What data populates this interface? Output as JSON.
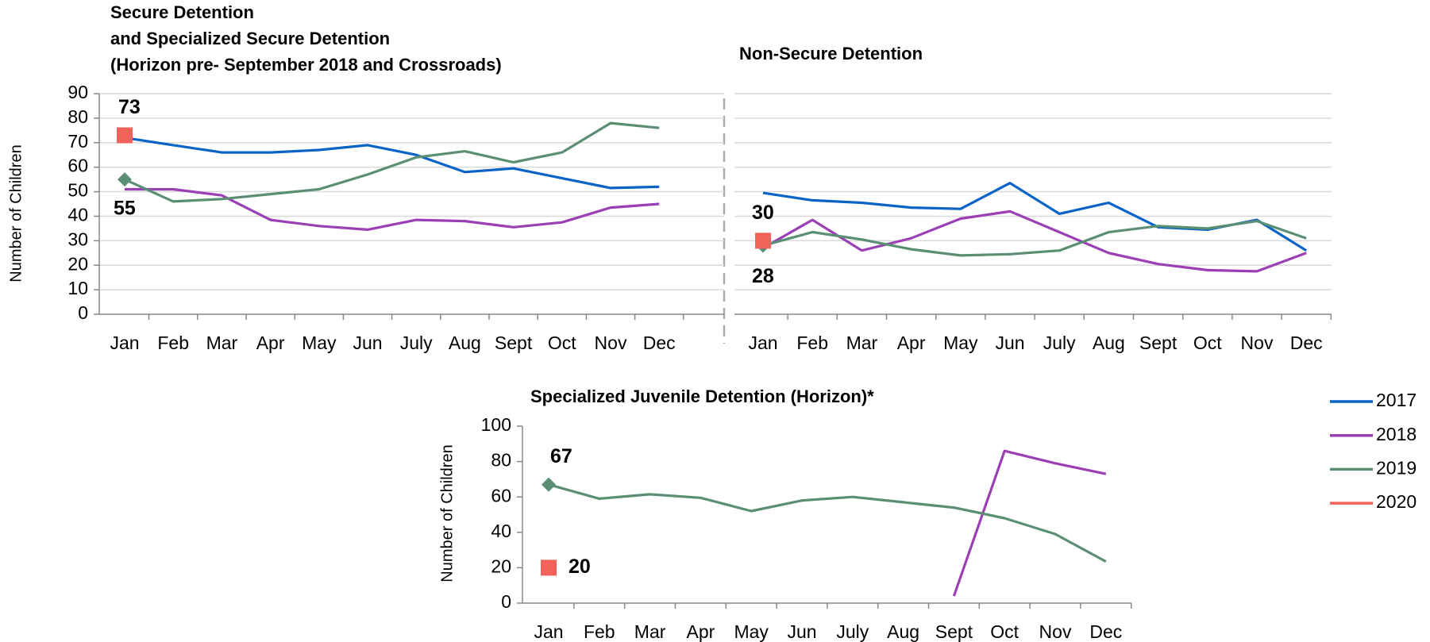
{
  "chart_data": [
    {
      "type": "line",
      "title": [
        "Secure Detention",
        "and Specialized Secure Detention",
        " (Horizon pre- September 2018 and Crossroads)"
      ],
      "ylabel": "Number of Children",
      "categories": [
        "Jan",
        "Feb",
        "Mar",
        "Apr",
        "May",
        "Jun",
        "July",
        "Aug",
        "Sept",
        "Oct",
        "Nov",
        "Dec"
      ],
      "ylim": [
        0,
        90
      ],
      "yticks": [
        0,
        10,
        20,
        30,
        40,
        50,
        60,
        70,
        80,
        90
      ],
      "grid": true,
      "show_yticklabels": true,
      "legend": "right",
      "series": [
        {
          "name": "2017",
          "color": "#0a64c8",
          "values": [
            72,
            69,
            66,
            66,
            67,
            69,
            65,
            58,
            59.5,
            55.5,
            51.5,
            52
          ]
        },
        {
          "name": "2018",
          "color": "#9b3fb5",
          "values": [
            51,
            51,
            48.5,
            38.5,
            36,
            34.5,
            38.5,
            38,
            35.5,
            37.5,
            43.5,
            45
          ]
        },
        {
          "name": "2019",
          "color": "#5a8f74",
          "marker": "diamond",
          "values": [
            55,
            46,
            47,
            49,
            51,
            57,
            64,
            66.5,
            62,
            66,
            78,
            76
          ]
        },
        {
          "name": "2020",
          "color": "#f0625a",
          "marker": "square",
          "values": [
            73,
            null,
            null,
            null,
            null,
            null,
            null,
            null,
            null,
            null,
            null,
            null
          ]
        }
      ]
    },
    {
      "type": "line",
      "title": [
        "Non-Secure Detention"
      ],
      "categories": [
        "Jan",
        "Feb",
        "Mar",
        "Apr",
        "May",
        "Jun",
        "July",
        "Aug",
        "Sept",
        "Oct",
        "Nov",
        "Dec"
      ],
      "ylim": [
        0,
        90
      ],
      "yticks": [
        0,
        10,
        20,
        30,
        40,
        50,
        60,
        70,
        80,
        90
      ],
      "grid": true,
      "show_yticklabels": false,
      "series": [
        {
          "name": "2017",
          "color": "#0a64c8",
          "values": [
            49.5,
            46.5,
            45.5,
            43.5,
            43,
            53.5,
            41,
            45.5,
            35.5,
            34.5,
            38.5,
            26
          ]
        },
        {
          "name": "2018",
          "color": "#9b3fb5",
          "values": [
            27,
            38.5,
            26,
            31,
            39,
            42,
            33.5,
            25,
            20.5,
            18,
            17.5,
            25
          ]
        },
        {
          "name": "2019",
          "color": "#5a8f74",
          "marker": "diamond",
          "values": [
            28,
            33.5,
            30.5,
            26.5,
            24,
            24.5,
            26,
            33.5,
            36,
            35,
            38,
            31
          ]
        },
        {
          "name": "2020",
          "color": "#f0625a",
          "marker": "square",
          "values": [
            30,
            null,
            null,
            null,
            null,
            null,
            null,
            null,
            null,
            null,
            null,
            null
          ]
        }
      ]
    },
    {
      "type": "line",
      "title": [
        "Specialized Juvenile Detention (Horizon)*"
      ],
      "ylabel": "Number of Children",
      "categories": [
        "Jan",
        "Feb",
        "Mar",
        "Apr",
        "May",
        "Jun",
        "July",
        "Aug",
        "Sept",
        "Oct",
        "Nov",
        "Dec"
      ],
      "ylim": [
        0,
        100
      ],
      "yticks": [
        0,
        20,
        40,
        60,
        80,
        100
      ],
      "grid": false,
      "show_yticklabels": true,
      "series": [
        {
          "name": "2018",
          "color": "#9b3fb5",
          "values": [
            null,
            null,
            null,
            null,
            null,
            null,
            null,
            null,
            4,
            86,
            79,
            73
          ]
        },
        {
          "name": "2019",
          "color": "#5a8f74",
          "marker": "diamond",
          "values": [
            67,
            59,
            61.5,
            59.5,
            52,
            58,
            60,
            57,
            54,
            48,
            39,
            23.5
          ]
        },
        {
          "name": "2020",
          "color": "#f0625a",
          "marker": "square",
          "values": [
            20,
            null,
            null,
            null,
            null,
            null,
            null,
            null,
            null,
            null,
            null,
            null
          ]
        }
      ]
    }
  ]
}
